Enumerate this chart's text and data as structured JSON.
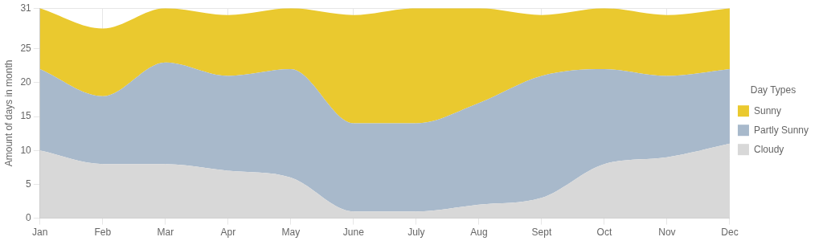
{
  "chart_data": {
    "type": "area",
    "stacked": true,
    "ylabel": "Amount of days in month",
    "legend_title": "Day Types",
    "legend": "right",
    "grid": true,
    "categories": [
      "Jan",
      "Feb",
      "Mar",
      "Apr",
      "May",
      "June",
      "July",
      "Aug",
      "Sept",
      "Oct",
      "Nov",
      "Dec"
    ],
    "ylim": [
      0,
      31
    ],
    "yticks": [
      0,
      5,
      10,
      15,
      20,
      25,
      31
    ],
    "series": [
      {
        "name": "Cloudy",
        "color": "#d8d8d8",
        "values": [
          10,
          8,
          8,
          7,
          6,
          1,
          1,
          2,
          3,
          8,
          9,
          11
        ]
      },
      {
        "name": "Partly Sunny",
        "color": "#a8b9cb",
        "values": [
          12,
          10,
          15,
          14,
          16,
          13,
          13,
          15,
          18,
          14,
          12,
          11
        ]
      },
      {
        "name": "Sunny",
        "color": "#eac92f",
        "values": [
          9,
          10,
          8,
          9,
          9,
          16,
          17,
          14,
          9,
          9,
          9,
          9
        ]
      }
    ]
  }
}
